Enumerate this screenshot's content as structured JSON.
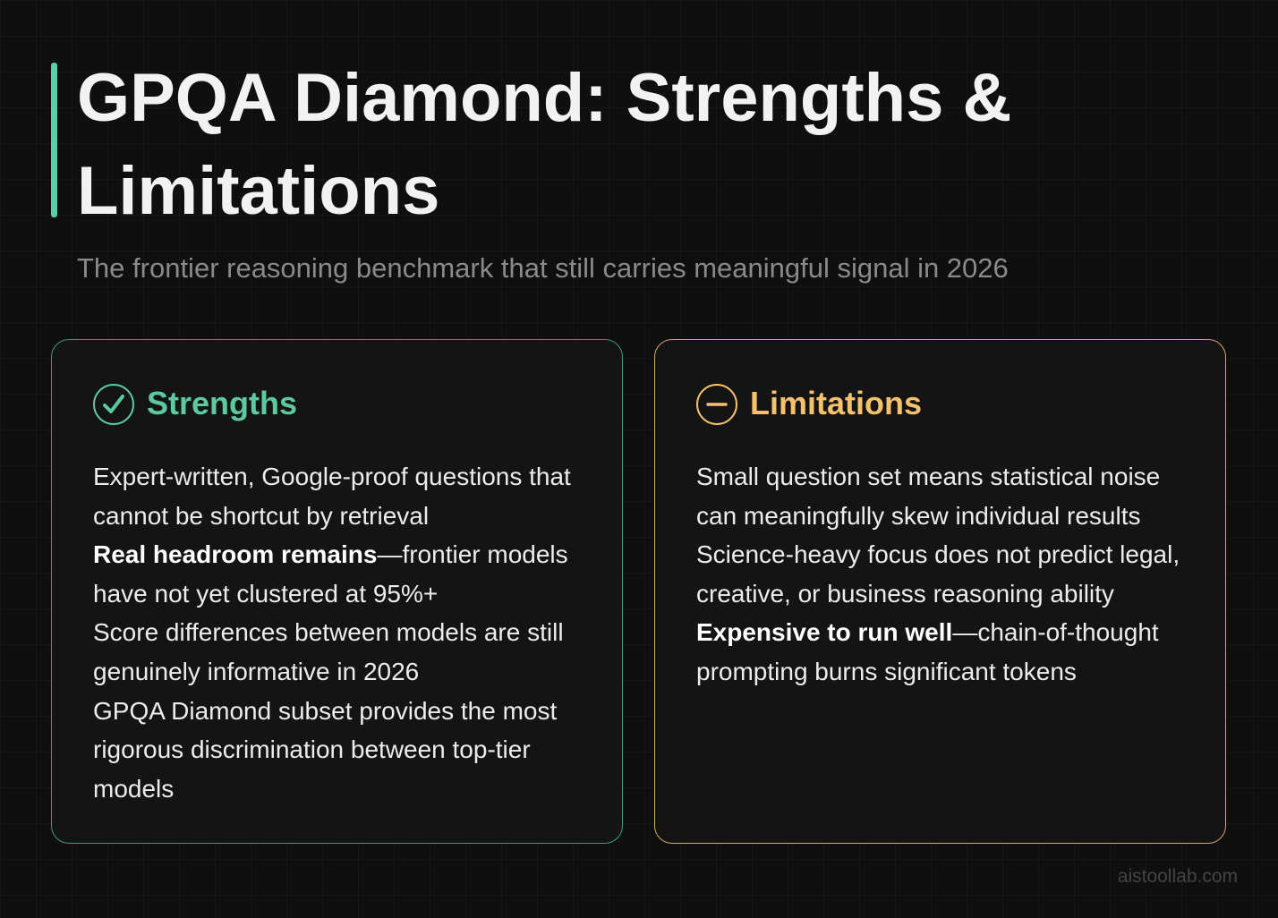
{
  "header": {
    "title": "GPQA Diamond: Strengths & Limitations",
    "subtitle": "The frontier reasoning benchmark that still carries meaningful signal in 2026"
  },
  "cards": [
    {
      "title": "Strengths",
      "items": [
        {
          "text": "Expert-written, Google-proof questions that cannot be shortcut by retrieval"
        },
        {
          "bold": "Real headroom remains",
          "text": "—frontier models have not yet clustered at 95%+"
        },
        {
          "text": "Score differences between models are still genuinely informative in 2026"
        },
        {
          "text": "GPQA Diamond subset provides the most rigorous discrimination between top-tier models"
        }
      ]
    },
    {
      "title": "Limitations",
      "items": [
        {
          "text": "Small question set means statistical noise can meaningfully skew individual results"
        },
        {
          "text": "Science-heavy focus does not predict legal, creative, or business reasoning ability"
        },
        {
          "bold": "Expensive to run well",
          "text": "—chain-of-thought prompting burns significant tokens"
        }
      ]
    }
  ],
  "footer": {
    "watermark": "aistoollab.com"
  }
}
